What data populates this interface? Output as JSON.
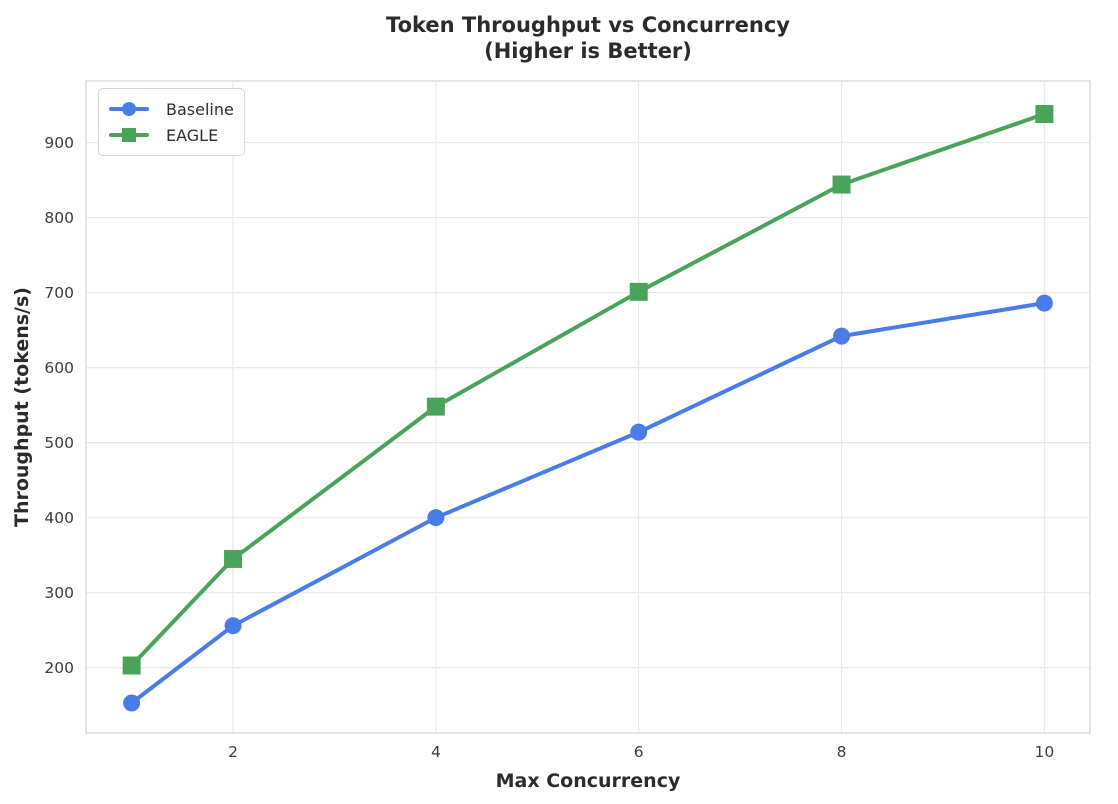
{
  "colors": {
    "background": "#ffffff",
    "grid": "#e8e8e8",
    "spine": "#d6d6d6",
    "title_text": "#2b2b2b",
    "tick_text": "#3d3d3d",
    "baseline_blue": "#4a7ce8",
    "eagle_green": "#4aa35a"
  },
  "chart_data": {
    "type": "line",
    "title": "Token Throughput vs Concurrency",
    "subtitle": "(Higher is Better)",
    "xlabel": "Max Concurrency",
    "ylabel": "Throughput (tokens/s)",
    "x": [
      1,
      2,
      4,
      6,
      8,
      10
    ],
    "series": [
      {
        "name": "Baseline",
        "color": "#4a7ce8",
        "marker": "circle",
        "values": [
          153,
          256,
          400,
          514,
          642,
          686
        ]
      },
      {
        "name": "EAGLE",
        "color": "#4aa35a",
        "marker": "square",
        "values": [
          203,
          345,
          548,
          701,
          844,
          938
        ]
      }
    ],
    "xticks": [
      2,
      4,
      6,
      8,
      10
    ],
    "yticks": [
      200,
      300,
      400,
      500,
      600,
      700,
      800,
      900
    ],
    "xlim": [
      0.55,
      10.45
    ],
    "ylim": [
      113,
      982
    ],
    "grid": true,
    "legend_position": "upper-left"
  }
}
